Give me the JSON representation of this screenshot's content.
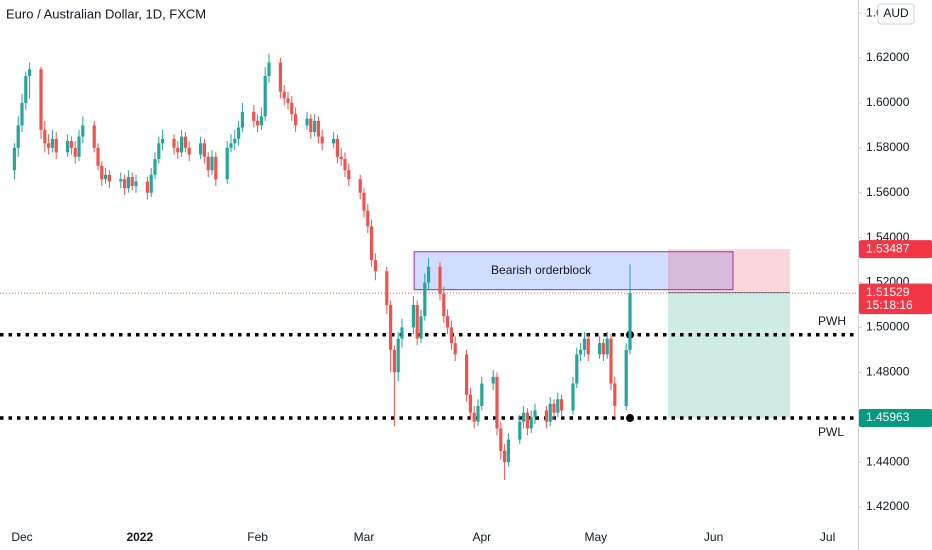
{
  "chart_data": {
    "type": "candlestick",
    "title": "Euro / Australian Dollar, 1D, FXCM",
    "currency": "AUD",
    "up_color": "#26a69a",
    "down_color": "#ef5350",
    "xlim": [
      -5.79,
      220
    ],
    "xticks": [
      {
        "value": 0,
        "label": "Dec"
      },
      {
        "value": 31,
        "label": "2022"
      },
      {
        "value": 62,
        "label": "Feb"
      },
      {
        "value": 90,
        "label": "Mar"
      },
      {
        "value": 121,
        "label": "Apr"
      },
      {
        "value": 151,
        "label": "May"
      },
      {
        "value": 182,
        "label": "Jun"
      },
      {
        "value": 212,
        "label": "Jul"
      }
    ],
    "ylim": [
      1.41198,
      1.64584
    ],
    "yticks": [
      {
        "value": 1.42,
        "label": "1.42000"
      },
      {
        "value": 1.44,
        "label": "1.44000"
      },
      {
        "value": 1.46,
        "label": "1.46000"
      },
      {
        "value": 1.48,
        "label": "1.48000"
      },
      {
        "value": 1.5,
        "label": "1.50000"
      },
      {
        "value": 1.52,
        "label": "1.52000"
      },
      {
        "value": 1.54,
        "label": "1.54000"
      },
      {
        "value": 1.56,
        "label": "1.56000"
      },
      {
        "value": 1.58,
        "label": "1.58000"
      },
      {
        "value": 1.6,
        "label": "1.60000"
      },
      {
        "value": 1.62,
        "label": "1.62000"
      },
      {
        "value": 1.64,
        "label": "1.64000"
      }
    ],
    "x": [
      -2,
      -1,
      0,
      1,
      2,
      5,
      6,
      7,
      8,
      9,
      12,
      13,
      14,
      15,
      16,
      19,
      20,
      21,
      22,
      23,
      26,
      27,
      28,
      29,
      30,
      33,
      34,
      35,
      36,
      37,
      40,
      41,
      42,
      43,
      44,
      47,
      48,
      49,
      50,
      51,
      54,
      55,
      56,
      57,
      58,
      61,
      62,
      63,
      64,
      65,
      68,
      69,
      70,
      71,
      72,
      75,
      76,
      77,
      78,
      79,
      82,
      83,
      84,
      85,
      86,
      89,
      90,
      91,
      92,
      93,
      96,
      97,
      98,
      99,
      100,
      103,
      104,
      105,
      106,
      107,
      110,
      111,
      112,
      113,
      114,
      117,
      118,
      119,
      120,
      121,
      124,
      125,
      126,
      127,
      128,
      131,
      132,
      133,
      134,
      135,
      138,
      139,
      140,
      141,
      142,
      145,
      146,
      147,
      148,
      149,
      152,
      153,
      154,
      155,
      156,
      159,
      160
    ],
    "ohlc": [
      [
        1.57,
        1.582,
        1.566,
        1.58
      ],
      [
        1.58,
        1.594,
        1.576,
        1.59
      ],
      [
        1.59,
        1.604,
        1.587,
        1.6
      ],
      [
        1.6,
        1.614,
        1.597,
        1.612
      ],
      [
        1.612,
        1.618,
        1.602,
        1.615
      ],
      [
        1.615,
        1.616,
        1.584,
        1.588
      ],
      [
        1.588,
        1.592,
        1.578,
        1.582
      ],
      [
        1.582,
        1.586,
        1.577,
        1.58
      ],
      [
        1.58,
        1.588,
        1.578,
        1.584
      ],
      [
        1.584,
        1.587,
        1.575,
        1.578
      ],
      [
        1.578,
        1.586,
        1.576,
        1.583
      ],
      [
        1.583,
        1.585,
        1.577,
        1.58
      ],
      [
        1.58,
        1.583,
        1.573,
        1.576
      ],
      [
        1.576,
        1.588,
        1.574,
        1.585
      ],
      [
        1.585,
        1.594,
        1.582,
        1.59
      ],
      [
        1.59,
        1.592,
        1.578,
        1.58
      ],
      [
        1.58,
        1.582,
        1.57,
        1.572
      ],
      [
        1.572,
        1.574,
        1.563,
        1.566
      ],
      [
        1.566,
        1.571,
        1.564,
        1.568
      ],
      [
        1.568,
        1.57,
        1.562,
        1.565
      ],
      [
        1.565,
        1.569,
        1.562,
        1.566
      ],
      [
        1.566,
        1.568,
        1.559,
        1.562
      ],
      [
        1.562,
        1.57,
        1.56,
        1.567
      ],
      [
        1.567,
        1.569,
        1.561,
        1.563
      ],
      [
        1.563,
        1.568,
        1.56,
        1.565
      ],
      [
        1.565,
        1.567,
        1.557,
        1.56
      ],
      [
        1.56,
        1.571,
        1.558,
        1.568
      ],
      [
        1.568,
        1.578,
        1.566,
        1.575
      ],
      [
        1.575,
        1.585,
        1.573,
        1.582
      ],
      [
        1.582,
        1.588,
        1.579,
        1.584
      ],
      [
        1.584,
        1.586,
        1.577,
        1.58
      ],
      [
        1.58,
        1.583,
        1.575,
        1.578
      ],
      [
        1.578,
        1.588,
        1.576,
        1.585
      ],
      [
        1.585,
        1.587,
        1.578,
        1.58
      ],
      [
        1.58,
        1.583,
        1.574,
        1.577
      ],
      [
        1.577,
        1.585,
        1.575,
        1.582
      ],
      [
        1.582,
        1.584,
        1.573,
        1.576
      ],
      [
        1.576,
        1.578,
        1.567,
        1.57
      ],
      [
        1.57,
        1.579,
        1.568,
        1.576
      ],
      [
        1.576,
        1.578,
        1.563,
        1.566
      ],
      [
        1.566,
        1.583,
        1.564,
        1.58
      ],
      [
        1.58,
        1.586,
        1.578,
        1.582
      ],
      [
        1.582,
        1.588,
        1.579,
        1.584
      ],
      [
        1.584,
        1.592,
        1.581,
        1.589
      ],
      [
        1.589,
        1.6,
        1.587,
        1.596
      ],
      [
        1.596,
        1.599,
        1.589,
        1.592
      ],
      [
        1.592,
        1.595,
        1.587,
        1.59
      ],
      [
        1.59,
        1.598,
        1.588,
        1.594
      ],
      [
        1.594,
        1.616,
        1.592,
        1.612
      ],
      [
        1.612,
        1.622,
        1.609,
        1.618
      ],
      [
        1.618,
        1.62,
        1.602,
        1.605
      ],
      [
        1.605,
        1.608,
        1.599,
        1.602
      ],
      [
        1.602,
        1.605,
        1.597,
        1.6
      ],
      [
        1.6,
        1.603,
        1.592,
        1.595
      ],
      [
        1.595,
        1.598,
        1.587,
        1.59
      ],
      [
        1.59,
        1.596,
        1.588,
        1.593
      ],
      [
        1.593,
        1.595,
        1.584,
        1.587
      ],
      [
        1.587,
        1.595,
        1.585,
        1.592
      ],
      [
        1.592,
        1.594,
        1.582,
        1.585
      ],
      [
        1.585,
        1.588,
        1.579,
        1.582
      ],
      [
        1.582,
        1.587,
        1.58,
        1.584
      ],
      [
        1.584,
        1.586,
        1.573,
        1.576
      ],
      [
        1.576,
        1.58,
        1.572,
        1.575
      ],
      [
        1.575,
        1.578,
        1.567,
        1.57
      ],
      [
        1.57,
        1.573,
        1.563,
        1.566
      ],
      [
        1.566,
        1.568,
        1.557,
        1.56
      ],
      [
        1.56,
        1.562,
        1.549,
        1.552
      ],
      [
        1.552,
        1.555,
        1.542,
        1.545
      ],
      [
        1.545,
        1.548,
        1.527,
        1.53
      ],
      [
        1.53,
        1.533,
        1.521,
        1.525
      ],
      [
        1.525,
        1.527,
        1.506,
        1.51
      ],
      [
        1.51,
        1.512,
        1.48,
        1.49
      ],
      [
        1.49,
        1.492,
        1.456,
        1.48
      ],
      [
        1.48,
        1.498,
        1.476,
        1.495
      ],
      [
        1.495,
        1.504,
        1.491,
        1.5
      ],
      [
        1.5,
        1.514,
        1.497,
        1.51
      ],
      [
        1.51,
        1.512,
        1.492,
        1.495
      ],
      [
        1.495,
        1.508,
        1.493,
        1.505
      ],
      [
        1.505,
        1.524,
        1.503,
        1.52
      ],
      [
        1.52,
        1.531,
        1.517,
        1.527
      ],
      [
        1.527,
        1.529,
        1.512,
        1.515
      ],
      [
        1.515,
        1.518,
        1.502,
        1.505
      ],
      [
        1.505,
        1.508,
        1.497,
        1.5
      ],
      [
        1.5,
        1.503,
        1.49,
        1.493
      ],
      [
        1.493,
        1.496,
        1.485,
        1.488
      ],
      [
        1.488,
        1.49,
        1.467,
        1.47
      ],
      [
        1.47,
        1.473,
        1.459,
        1.462
      ],
      [
        1.462,
        1.465,
        1.455,
        1.458
      ],
      [
        1.458,
        1.468,
        1.456,
        1.465
      ],
      [
        1.465,
        1.478,
        1.463,
        1.475
      ],
      [
        1.475,
        1.481,
        1.472,
        1.478
      ],
      [
        1.478,
        1.48,
        1.452,
        1.455
      ],
      [
        1.455,
        1.458,
        1.441,
        1.445
      ],
      [
        1.445,
        1.448,
        1.432,
        1.44
      ],
      [
        1.44,
        1.453,
        1.438,
        1.45
      ],
      [
        1.45,
        1.461,
        1.448,
        1.458
      ],
      [
        1.458,
        1.465,
        1.455,
        1.462
      ],
      [
        1.462,
        1.464,
        1.452,
        1.455
      ],
      [
        1.455,
        1.463,
        1.453,
        1.46
      ],
      [
        1.46,
        1.466,
        1.457,
        1.463
      ],
      [
        1.463,
        1.465,
        1.455,
        1.458
      ],
      [
        1.458,
        1.469,
        1.456,
        1.466
      ],
      [
        1.466,
        1.468,
        1.459,
        1.462
      ],
      [
        1.462,
        1.471,
        1.46,
        1.468
      ],
      [
        1.468,
        1.47,
        1.46,
        1.463
      ],
      [
        1.463,
        1.478,
        1.461,
        1.475
      ],
      [
        1.475,
        1.491,
        1.473,
        1.488
      ],
      [
        1.488,
        1.493,
        1.485,
        1.49
      ],
      [
        1.49,
        1.498,
        1.487,
        1.495
      ],
      [
        1.495,
        1.497,
        1.485,
        1.488
      ],
      [
        1.488,
        1.496,
        1.486,
        1.493
      ],
      [
        1.493,
        1.495,
        1.485,
        1.488
      ],
      [
        1.488,
        1.498,
        1.486,
        1.495
      ],
      [
        1.495,
        1.497,
        1.472,
        1.475
      ],
      [
        1.475,
        1.478,
        1.46,
        1.465
      ],
      [
        1.465,
        1.493,
        1.463,
        1.49
      ],
      [
        1.49,
        1.528,
        1.488,
        1.5153
      ]
    ],
    "levels": [
      {
        "name": "PWH",
        "value": 1.4967
      },
      {
        "name": "PWL",
        "value": 1.45963
      }
    ],
    "orderblock": {
      "label": "Bearish orderblock",
      "top": 1.5337,
      "bottom": 1.5168,
      "x": [
        103.2,
        187.1
      ]
    },
    "position": {
      "stop": 1.53487,
      "entry": 1.51553,
      "target": 1.45963,
      "x": [
        170,
        202.1
      ]
    },
    "last": {
      "price": 1.51529,
      "countdown": "15:18:16"
    }
  }
}
